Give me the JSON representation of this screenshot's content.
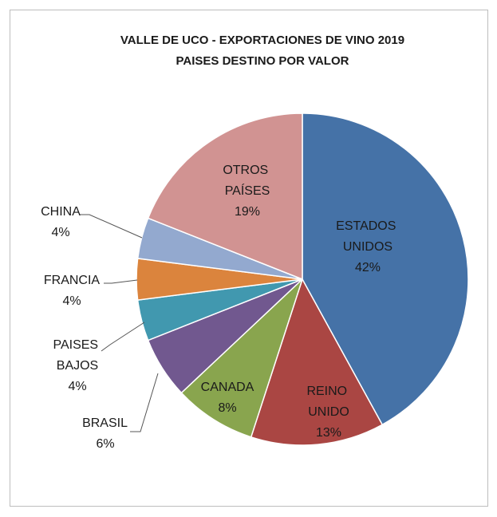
{
  "chart_data": {
    "type": "pie",
    "title": "VALLE DE UCO - EXPORTACIONES DE VINO 2019",
    "subtitle": "PAISES DESTINO POR VALOR",
    "categories": [
      "ESTADOS UNIDOS",
      "REINO UNIDO",
      "CANADA",
      "BRASIL",
      "PAISES BAJOS",
      "FRANCIA",
      "CHINA",
      "OTROS PAÍSES"
    ],
    "values": [
      42,
      13,
      8,
      6,
      4,
      4,
      4,
      19
    ],
    "value_labels": [
      "42%",
      "13%",
      "8%",
      "6%",
      "4%",
      "4%",
      "4%",
      "19%"
    ],
    "colors": [
      "#4572a7",
      "#aa4643",
      "#89a54e",
      "#71588f",
      "#4198af",
      "#db843d",
      "#93a9cf",
      "#d19392"
    ]
  }
}
